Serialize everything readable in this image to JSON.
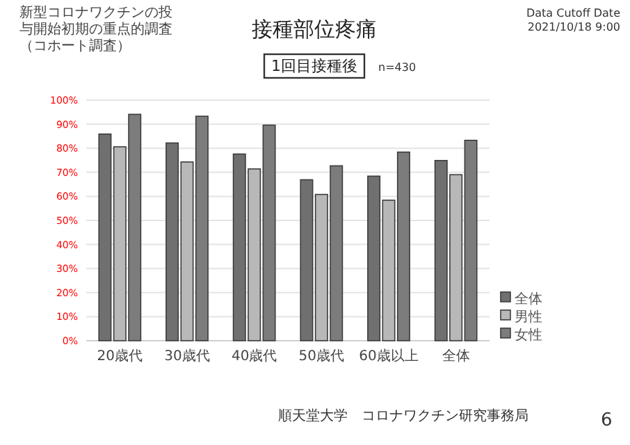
{
  "chart_data": {
    "type": "bar",
    "title": "接種部位疼痛",
    "subtitle": "1回目接種後",
    "categories": [
      "20歳代",
      "30歳代",
      "40歳代",
      "50歳代",
      "60歳以上",
      "全体"
    ],
    "series": [
      {
        "name": "全体",
        "color": "#707070",
        "values": [
          85.9,
          82.2,
          77.6,
          66.9,
          68.4,
          74.9
        ]
      },
      {
        "name": "男性",
        "color": "#b8b8b8",
        "values": [
          80.6,
          74.3,
          71.4,
          60.8,
          58.4,
          69.0
        ]
      },
      {
        "name": "女性",
        "color": "#7c7c7c",
        "values": [
          94.1,
          93.3,
          89.6,
          72.7,
          78.4,
          83.3
        ]
      }
    ],
    "ylim": [
      0,
      100
    ],
    "yticks": [
      {
        "value": 0,
        "label": "0%"
      },
      {
        "value": 10,
        "label": "10%"
      },
      {
        "value": 20,
        "label": "20%"
      },
      {
        "value": 30,
        "label": "30%"
      },
      {
        "value": 40,
        "label": "40%"
      },
      {
        "value": 50,
        "label": "50%"
      },
      {
        "value": 60,
        "label": "60%"
      },
      {
        "value": 70,
        "label": "70%"
      },
      {
        "value": 80,
        "label": "80%"
      },
      {
        "value": 90,
        "label": "90%"
      },
      {
        "value": 100,
        "label": "100%"
      }
    ],
    "grid": "y",
    "legend": "bottom right",
    "annotations": [
      "新型コロナワクチンの投与開始初期の重点的調査（コホート調査）",
      "n=430",
      "Data Cutoff Date",
      "2021/10/18 9:00",
      "順天堂大学　コロナワクチン研究事務局",
      "6"
    ]
  }
}
